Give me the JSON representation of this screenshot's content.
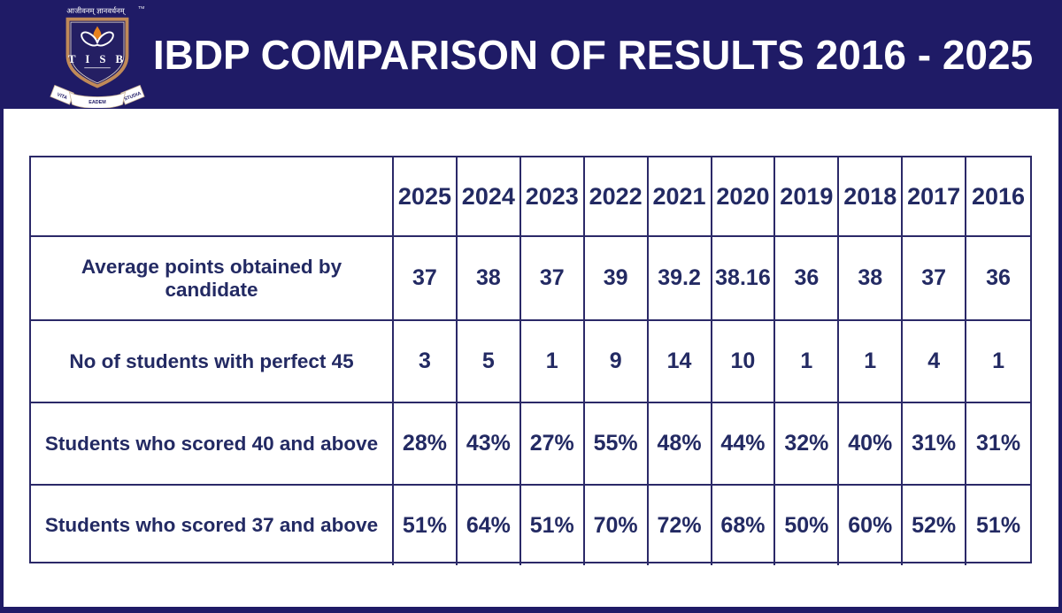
{
  "header": {
    "title": "IBDP COMPARISON OF RESULTS 2016 - 2025",
    "logo": {
      "sanskrit_motto": "आजीवनम् ज्ञानवर्धनम्",
      "trademark": "TM",
      "acronym": "T I S B",
      "ribbon_motto": {
        "left": "VITA",
        "center": "EADEM",
        "right": "STUDIA"
      }
    }
  },
  "colors": {
    "header_background": "#1f1b66",
    "table_text": "#232a63",
    "grid_lines": "#2b2968",
    "shield_trim": "#c08a58",
    "flame": "#e8821c",
    "title_text": "#ffffff"
  },
  "table": {
    "corner_label": "",
    "columns": [
      "2025",
      "2024",
      "2023",
      "2022",
      "2021",
      "2020",
      "2019",
      "2018",
      "2017",
      "2016"
    ],
    "rows": [
      {
        "label": "Average points obtained by candidate",
        "values": [
          "37",
          "38",
          "37",
          "39",
          "39.2",
          "38.16",
          "36",
          "38",
          "37",
          "36"
        ]
      },
      {
        "label": "No of students with perfect 45",
        "values": [
          "3",
          "5",
          "1",
          "9",
          "14",
          "10",
          "1",
          "1",
          "4",
          "1"
        ]
      },
      {
        "label": "Students who scored 40 and above",
        "values": [
          "28%",
          "43%",
          "27%",
          "55%",
          "48%",
          "44%",
          "32%",
          "40%",
          "31%",
          "31%"
        ]
      },
      {
        "label": "Students who scored 37 and above",
        "values": [
          "51%",
          "64%",
          "51%",
          "70%",
          "72%",
          "68%",
          "50%",
          "60%",
          "52%",
          "51%"
        ]
      }
    ]
  }
}
